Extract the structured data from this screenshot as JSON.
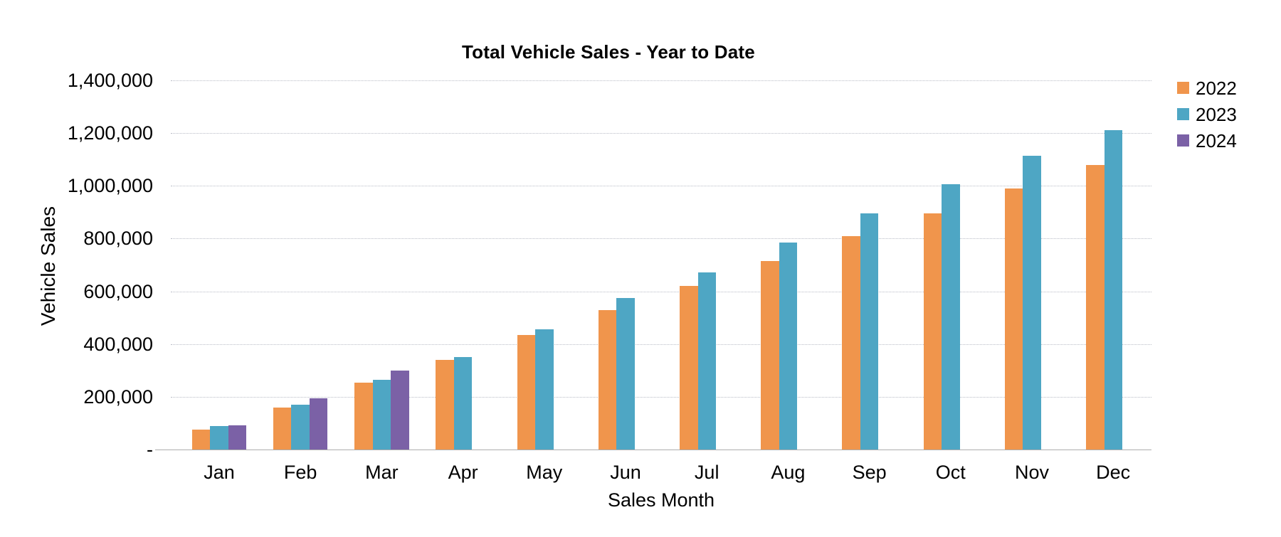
{
  "chart_data": {
    "type": "bar",
    "title": "Total Vehicle Sales - Year to Date",
    "xlabel": "Sales Month",
    "ylabel": "Vehicle Sales",
    "categories": [
      "Jan",
      "Feb",
      "Mar",
      "Apr",
      "May",
      "Jun",
      "Jul",
      "Aug",
      "Sep",
      "Oct",
      "Nov",
      "Dec"
    ],
    "series": [
      {
        "name": "2022",
        "color": "#F0954C",
        "values": [
          75000,
          160000,
          255000,
          340000,
          435000,
          530000,
          620000,
          715000,
          810000,
          895000,
          990000,
          1080000
        ]
      },
      {
        "name": "2023",
        "color": "#4EA6C4",
        "values": [
          88000,
          170000,
          265000,
          350000,
          455000,
          575000,
          672000,
          785000,
          895000,
          1005000,
          1115000,
          1212000
        ]
      },
      {
        "name": "2024",
        "color": "#7B61A6",
        "values": [
          92000,
          195000,
          300000,
          null,
          null,
          null,
          null,
          null,
          null,
          null,
          null,
          null
        ]
      }
    ],
    "ylim": [
      0,
      1400000
    ],
    "ytick_step": 200000,
    "yticks": [
      {
        "value": 0,
        "label": "-"
      },
      {
        "value": 200000,
        "label": "200,000"
      },
      {
        "value": 400000,
        "label": "400,000"
      },
      {
        "value": 600000,
        "label": "600,000"
      },
      {
        "value": 800000,
        "label": "800,000"
      },
      {
        "value": 1000000,
        "label": "1,000,000"
      },
      {
        "value": 1200000,
        "label": "1,200,000"
      },
      {
        "value": 1400000,
        "label": "1,400,000"
      }
    ],
    "grid": "horizontal-dotted",
    "legend_position": "top-right",
    "legend_entries": [
      "2022",
      "2023",
      "2024"
    ]
  }
}
